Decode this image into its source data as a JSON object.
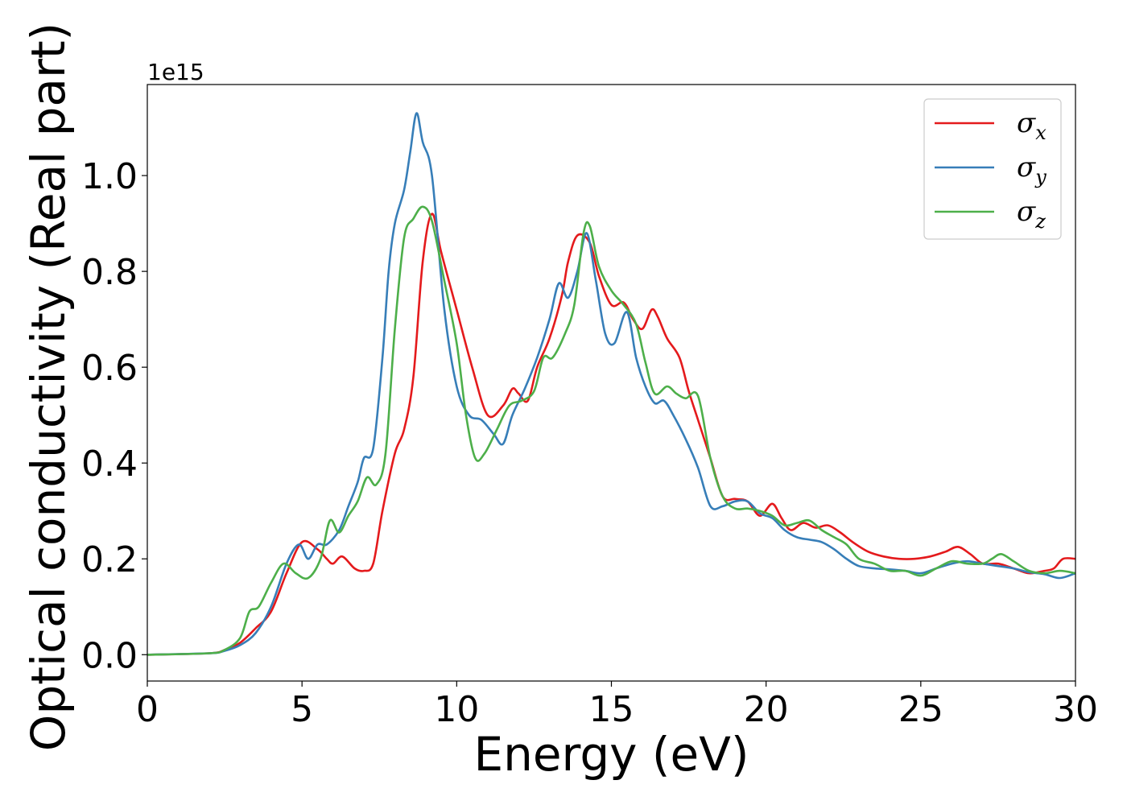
{
  "chart_data": {
    "type": "line",
    "xlabel": "Energy (eV)",
    "ylabel": "Optical conductivity (Real part)",
    "y_offset_text": "1e15",
    "xlim": [
      0,
      30
    ],
    "ylim": [
      -0.055,
      1.19
    ],
    "xticks": [
      0,
      5,
      10,
      15,
      20,
      25,
      30
    ],
    "xtick_labels": [
      "0",
      "5",
      "10",
      "15",
      "20",
      "25",
      "30"
    ],
    "yticks": [
      0.0,
      0.2,
      0.4,
      0.6,
      0.8,
      1.0
    ],
    "ytick_labels": [
      "0.0",
      "0.2",
      "0.4",
      "0.6",
      "0.8",
      "1.0"
    ],
    "grid": false,
    "legend_position": "top-right",
    "series": [
      {
        "name": "σx",
        "symbol": "σ",
        "subscript": "x",
        "color": "#e41a1c",
        "x": [
          0,
          2,
          2.5,
          3,
          3.5,
          4,
          4.5,
          5,
          5.5,
          5.8,
          6,
          6.3,
          6.7,
          7,
          7.3,
          7.6,
          8,
          8.3,
          8.6,
          8.9,
          9.2,
          9.5,
          10,
          10.5,
          11,
          11.5,
          11.8,
          12,
          12.3,
          12.6,
          13,
          13.4,
          13.6,
          13.9,
          14.3,
          14.6,
          15,
          15.4,
          15.7,
          16,
          16.3,
          16.5,
          16.8,
          17.2,
          17.5,
          17.8,
          18.2,
          18.6,
          19,
          19.4,
          19.8,
          20.2,
          20.5,
          20.8,
          21.2,
          21.6,
          22,
          22.4,
          22.8,
          23.3,
          23.8,
          24.3,
          24.8,
          25.3,
          25.8,
          26.2,
          26.6,
          27,
          27.5,
          28,
          28.5,
          29,
          29.3,
          29.6,
          30
        ],
        "y": [
          0,
          0.003,
          0.01,
          0.025,
          0.055,
          0.09,
          0.17,
          0.235,
          0.22,
          0.2,
          0.19,
          0.205,
          0.18,
          0.175,
          0.19,
          0.3,
          0.42,
          0.47,
          0.58,
          0.82,
          0.92,
          0.84,
          0.72,
          0.6,
          0.5,
          0.52,
          0.555,
          0.545,
          0.53,
          0.6,
          0.66,
          0.75,
          0.82,
          0.875,
          0.86,
          0.79,
          0.73,
          0.735,
          0.7,
          0.68,
          0.72,
          0.705,
          0.66,
          0.62,
          0.55,
          0.49,
          0.41,
          0.33,
          0.325,
          0.32,
          0.29,
          0.315,
          0.285,
          0.26,
          0.275,
          0.265,
          0.27,
          0.255,
          0.235,
          0.215,
          0.205,
          0.2,
          0.2,
          0.205,
          0.215,
          0.225,
          0.21,
          0.19,
          0.19,
          0.18,
          0.17,
          0.175,
          0.18,
          0.2,
          0.2
        ]
      },
      {
        "name": "σy",
        "symbol": "σ",
        "subscript": "y",
        "color": "#377eb8",
        "x": [
          0,
          2,
          2.5,
          3,
          3.5,
          4,
          4.5,
          4.9,
          5.2,
          5.5,
          5.8,
          6.2,
          6.5,
          6.8,
          7,
          7.3,
          7.6,
          7.8,
          8,
          8.3,
          8.5,
          8.7,
          8.9,
          9.2,
          9.6,
          10,
          10.4,
          10.8,
          11.2,
          11.5,
          11.8,
          12.2,
          12.6,
          13,
          13.3,
          13.6,
          13.9,
          14.2,
          14.5,
          14.8,
          15.1,
          15.5,
          15.8,
          16.1,
          16.4,
          16.7,
          17,
          17.4,
          17.8,
          18.2,
          18.6,
          19,
          19.4,
          19.8,
          20.2,
          20.6,
          21,
          21.4,
          21.8,
          22.2,
          22.6,
          23,
          23.5,
          24,
          24.5,
          25,
          25.5,
          26,
          26.5,
          27,
          27.5,
          28,
          28.5,
          29,
          29.5,
          30
        ],
        "y": [
          0,
          0.003,
          0.008,
          0.02,
          0.045,
          0.1,
          0.19,
          0.23,
          0.2,
          0.23,
          0.23,
          0.26,
          0.31,
          0.36,
          0.41,
          0.43,
          0.62,
          0.8,
          0.9,
          0.97,
          1.05,
          1.13,
          1.07,
          1.0,
          0.72,
          0.56,
          0.5,
          0.49,
          0.46,
          0.44,
          0.5,
          0.555,
          0.62,
          0.7,
          0.775,
          0.745,
          0.8,
          0.88,
          0.78,
          0.67,
          0.65,
          0.715,
          0.62,
          0.56,
          0.525,
          0.53,
          0.5,
          0.45,
          0.39,
          0.31,
          0.31,
          0.32,
          0.32,
          0.295,
          0.285,
          0.26,
          0.245,
          0.24,
          0.235,
          0.22,
          0.2,
          0.185,
          0.18,
          0.178,
          0.175,
          0.17,
          0.18,
          0.19,
          0.195,
          0.19,
          0.185,
          0.18,
          0.172,
          0.168,
          0.16,
          0.17
        ]
      },
      {
        "name": "σz",
        "symbol": "σ",
        "subscript": "z",
        "color": "#4daf4a",
        "x": [
          0,
          2,
          2.5,
          3,
          3.3,
          3.6,
          4,
          4.4,
          4.8,
          5.2,
          5.6,
          5.9,
          6.2,
          6.5,
          6.8,
          7.1,
          7.4,
          7.7,
          8,
          8.3,
          8.6,
          8.9,
          9.2,
          9.6,
          10,
          10.3,
          10.6,
          10.9,
          11.3,
          11.7,
          12.1,
          12.5,
          12.8,
          13.1,
          13.5,
          13.8,
          14.1,
          14.3,
          14.6,
          15,
          15.4,
          15.8,
          16.1,
          16.4,
          16.8,
          17.1,
          17.4,
          17.8,
          18.2,
          18.6,
          19,
          19.4,
          19.8,
          20.2,
          20.6,
          21,
          21.4,
          21.8,
          22.2,
          22.6,
          23,
          23.5,
          24,
          24.5,
          25,
          25.5,
          26,
          26.5,
          27,
          27.3,
          27.6,
          28,
          28.5,
          29,
          29.5,
          30
        ],
        "y": [
          0,
          0.003,
          0.01,
          0.035,
          0.09,
          0.1,
          0.15,
          0.19,
          0.17,
          0.16,
          0.2,
          0.28,
          0.255,
          0.29,
          0.32,
          0.37,
          0.355,
          0.42,
          0.68,
          0.87,
          0.91,
          0.935,
          0.905,
          0.78,
          0.65,
          0.5,
          0.41,
          0.42,
          0.47,
          0.52,
          0.53,
          0.55,
          0.62,
          0.62,
          0.67,
          0.73,
          0.88,
          0.895,
          0.81,
          0.76,
          0.73,
          0.69,
          0.61,
          0.545,
          0.56,
          0.545,
          0.535,
          0.54,
          0.41,
          0.33,
          0.305,
          0.305,
          0.3,
          0.29,
          0.27,
          0.275,
          0.28,
          0.26,
          0.245,
          0.23,
          0.2,
          0.19,
          0.175,
          0.175,
          0.165,
          0.18,
          0.195,
          0.19,
          0.19,
          0.2,
          0.21,
          0.195,
          0.175,
          0.17,
          0.175,
          0.17
        ]
      }
    ]
  }
}
